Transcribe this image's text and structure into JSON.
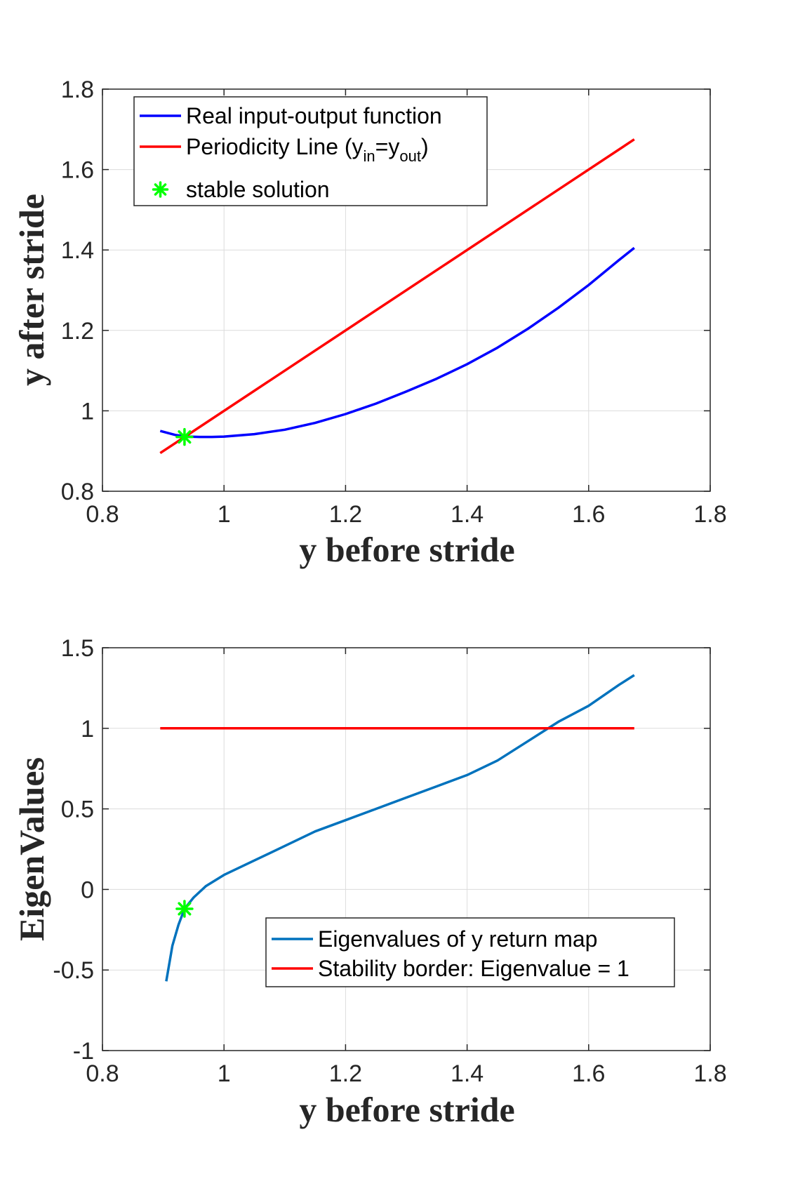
{
  "chart_data": [
    {
      "type": "line",
      "xlabel": "y before stride",
      "ylabel": "y after stride",
      "xlim": [
        0.8,
        1.8
      ],
      "ylim": [
        0.8,
        1.8
      ],
      "xticks": [
        "0.8",
        "1",
        "1.2",
        "1.4",
        "1.6",
        "1.8"
      ],
      "yticks": [
        "0.8",
        "1",
        "1.2",
        "1.4",
        "1.6",
        "1.8"
      ],
      "grid": true,
      "legend_position": "top-left",
      "series": [
        {
          "name": "Real input-output function",
          "color": "#0000ff",
          "x": [
            0.895,
            0.92,
            0.94,
            0.96,
            0.98,
            1.0,
            1.05,
            1.1,
            1.15,
            1.2,
            1.25,
            1.3,
            1.35,
            1.4,
            1.45,
            1.5,
            1.55,
            1.6,
            1.65,
            1.675
          ],
          "y": [
            0.95,
            0.94,
            0.936,
            0.935,
            0.935,
            0.936,
            0.942,
            0.953,
            0.97,
            0.992,
            1.018,
            1.048,
            1.08,
            1.116,
            1.157,
            1.204,
            1.256,
            1.313,
            1.375,
            1.405
          ]
        },
        {
          "name": "Periodicity Line (y",
          "name_sub1": "in",
          "name_mid": "=y",
          "name_sub2": "out",
          "name_end": ")",
          "color": "#ff0000",
          "x": [
            0.895,
            1.675
          ],
          "y": [
            0.895,
            1.675
          ]
        },
        {
          "name": "stable solution",
          "color": "#00ff00",
          "marker": "asterisk",
          "x": [
            0.935
          ],
          "y": [
            0.935
          ]
        }
      ]
    },
    {
      "type": "line",
      "xlabel": "y before stride",
      "ylabel": "EigenValues",
      "xlim": [
        0.8,
        1.8
      ],
      "ylim": [
        -1,
        1.5
      ],
      "xticks": [
        "0.8",
        "1",
        "1.2",
        "1.4",
        "1.6",
        "1.8"
      ],
      "yticks": [
        "-1",
        "-0.5",
        "0",
        "0.5",
        "1",
        "1.5"
      ],
      "grid": true,
      "legend_position": "bottom-right",
      "series": [
        {
          "name": "Eigenvalues of y return map",
          "color": "#0072bd",
          "x": [
            0.905,
            0.915,
            0.925,
            0.935,
            0.95,
            0.97,
            1.0,
            1.05,
            1.1,
            1.15,
            1.2,
            1.25,
            1.3,
            1.35,
            1.4,
            1.45,
            1.5,
            1.55,
            1.6,
            1.65,
            1.675
          ],
          "y": [
            -0.57,
            -0.35,
            -0.22,
            -0.12,
            -0.05,
            0.02,
            0.09,
            0.18,
            0.27,
            0.36,
            0.43,
            0.5,
            0.57,
            0.64,
            0.71,
            0.8,
            0.92,
            1.04,
            1.14,
            1.27,
            1.33
          ]
        },
        {
          "name": "Stability border: Eigenvalue = 1",
          "color": "#ff0000",
          "x": [
            0.895,
            1.675
          ],
          "y": [
            1,
            1
          ]
        },
        {
          "marker": "asterisk",
          "color": "#00ff00",
          "x": [
            0.935
          ],
          "y": [
            -0.12
          ]
        }
      ]
    }
  ]
}
